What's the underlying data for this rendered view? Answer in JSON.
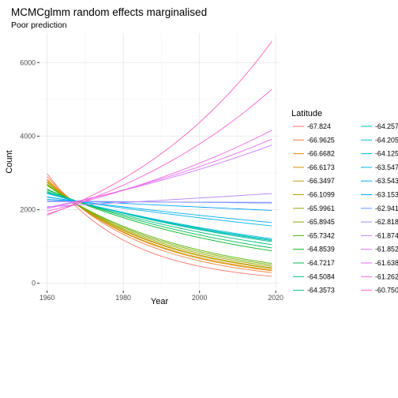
{
  "chart_data": {
    "type": "line",
    "title": "MCMCglmm random effects marginalised",
    "subtitle": "Poor prediction",
    "xlabel": "Year",
    "ylabel": "Count",
    "xlim": [
      1958,
      2021
    ],
    "ylim": [
      -200,
      6800
    ],
    "x_ticks": [
      1960,
      1980,
      2000,
      2020
    ],
    "y_ticks": [
      0,
      2000,
      4000,
      6000
    ],
    "x_tick_labels": [
      "1960",
      "1980",
      "2000",
      "2020"
    ],
    "y_tick_labels": [
      "0",
      "2000",
      "4000",
      "6000"
    ],
    "grid": true,
    "legend_title": "Latitude",
    "legend_position": "right",
    "x_range": [
      1960,
      2019
    ],
    "series": [
      {
        "name": "-67.824",
        "color": "#F8766D",
        "start": 2980,
        "end": 190
      },
      {
        "name": "-66.9625",
        "color": "#EE8043",
        "start": 2900,
        "end": 290
      },
      {
        "name": "-66.6682",
        "color": "#E38900",
        "start": 2830,
        "end": 340
      },
      {
        "name": "-66.6173",
        "color": "#D39200",
        "start": 2800,
        "end": 360
      },
      {
        "name": "-66.3497",
        "color": "#C49A00",
        "start": 2760,
        "end": 400
      },
      {
        "name": "-66.1099",
        "color": "#B0A100",
        "start": 2740,
        "end": 420
      },
      {
        "name": "-65.9961",
        "color": "#99A800",
        "start": 2700,
        "end": 460
      },
      {
        "name": "-65.8945",
        "color": "#7CAE00",
        "start": 2680,
        "end": 500
      },
      {
        "name": "-65.7342",
        "color": "#53B400",
        "start": 2660,
        "end": 540
      },
      {
        "name": "-64.8539",
        "color": "#00B81F",
        "start": 2560,
        "end": 880
      },
      {
        "name": "-64.7217",
        "color": "#00BC56",
        "start": 2540,
        "end": 960
      },
      {
        "name": "-64.5084",
        "color": "#00BF77",
        "start": 2500,
        "end": 1050
      },
      {
        "name": "-64.3573",
        "color": "#00C094",
        "start": 2480,
        "end": 1130
      },
      {
        "name": "-64.2577",
        "color": "#00C1AD",
        "start": 2460,
        "end": 1160
      },
      {
        "name": "-64.205",
        "color": "#00BFC4",
        "start": 2450,
        "end": 1180
      },
      {
        "name": "-64.1259",
        "color": "#00BBDA",
        "start": 2440,
        "end": 1210
      },
      {
        "name": "-63.5472",
        "color": "#00B5EE",
        "start": 2350,
        "end": 1560
      },
      {
        "name": "-63.5431",
        "color": "#00ACFC",
        "start": 2340,
        "end": 1650
      },
      {
        "name": "-63.1533",
        "color": "#00A5FF",
        "start": 2280,
        "end": 1980
      },
      {
        "name": "-62.9411",
        "color": "#619CFF",
        "start": 2240,
        "end": 2180
      },
      {
        "name": "-62.8185",
        "color": "#9590FF",
        "start": 2220,
        "end": 2200
      },
      {
        "name": "-61.8741",
        "color": "#B983FF",
        "start": 2080,
        "end": 2440
      },
      {
        "name": "-61.8525",
        "color": "#D277FF",
        "start": 2060,
        "end": 3760
      },
      {
        "name": "-61.6389",
        "color": "#E76BF3",
        "start": 2030,
        "end": 3920
      },
      {
        "name": "-61.2625",
        "color": "#F465E0",
        "start": 1960,
        "end": 4160
      },
      {
        "name": "-60.7507",
        "color": "#FD61D1",
        "start": 1880,
        "end": 5280
      },
      {
        "name": "",
        "color": "#FF62BC",
        "start": 1850,
        "end": 6580
      }
    ]
  }
}
